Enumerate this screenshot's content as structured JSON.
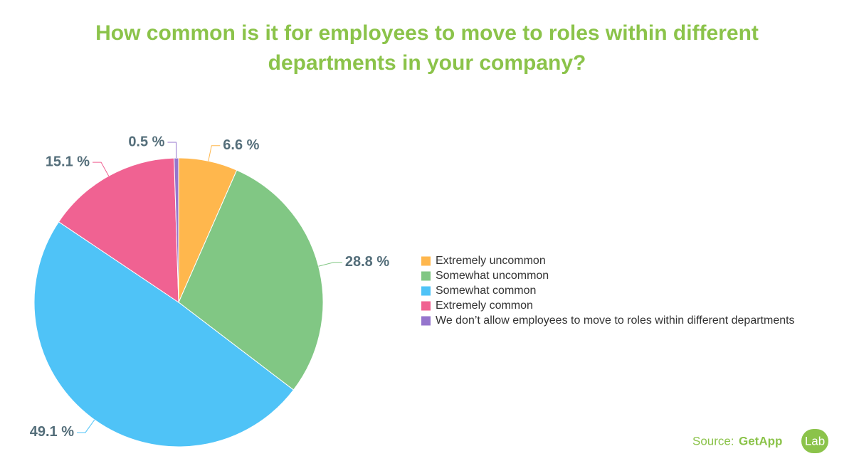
{
  "chart_data": {
    "type": "pie",
    "title": "How common is it for employees to move to roles within different departments in your company?",
    "categories": [
      "Extremely uncommon",
      "Somewhat uncommon",
      "Somewhat common",
      "Extremely common",
      "We don’t allow employees to move to roles within different departments"
    ],
    "values": [
      6.6,
      28.8,
      49.1,
      15.1,
      0.5
    ],
    "value_labels": [
      "6.6 %",
      "28.8 %",
      "49.1 %",
      "15.1 %",
      "0.5 %"
    ],
    "colors": [
      "#ffb74d",
      "#81c784",
      "#4fc3f7",
      "#f06292",
      "#9575cd"
    ],
    "legend": "right"
  },
  "source": {
    "label": "Source:",
    "brand": "GetApp",
    "sub": "Lab"
  }
}
